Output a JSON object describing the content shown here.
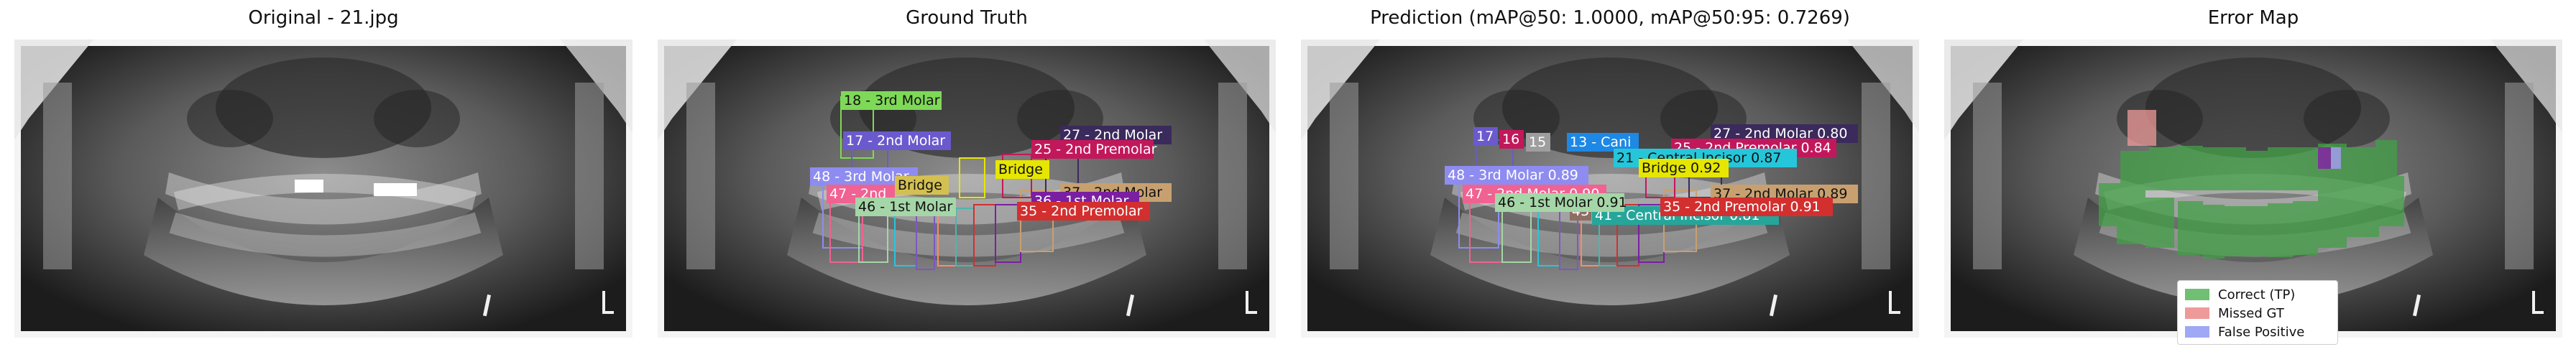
{
  "panels": [
    {
      "title": "Original - 21.jpg"
    },
    {
      "title": "Ground Truth"
    },
    {
      "title": "Prediction (mAP@50: 1.0000, mAP@50:95: 0.7269)"
    },
    {
      "title": "Error Map"
    }
  ],
  "ground_truth_labels": [
    {
      "text": "18 - 3rd Molar",
      "color": "#7ed957"
    },
    {
      "text": "17 - 2nd Molar",
      "color": "#6a5acd"
    },
    {
      "text": "27 - 2nd Molar",
      "color": "#3b2a5c"
    },
    {
      "text": "25 - 2nd Premolar",
      "color": "#c2185b"
    },
    {
      "text": "Bridge",
      "color": "#e6e600"
    },
    {
      "text": "48 - 3rd Molar",
      "color": "#8e8cf0"
    },
    {
      "text": "47 - 2nd",
      "color": "#f06292"
    },
    {
      "text": "Bridge",
      "color": "#d4c050"
    },
    {
      "text": "37 - 2nd Molar",
      "color": "#c8a070"
    },
    {
      "text": "36 - 1st Molar",
      "color": "#7b1fa2"
    },
    {
      "text": "35 - 2nd Premolar",
      "color": "#d32f2f"
    },
    {
      "text": "46 - 1st Molar",
      "color": "#a5d6a7"
    }
  ],
  "prediction_labels": [
    {
      "text": "27 - 2nd Molar 0.80",
      "color": "#3b2a5c"
    },
    {
      "text": "25 - 2nd Premolar 0.84",
      "color": "#c2185b"
    },
    {
      "text": "17",
      "color": "#6a5acd"
    },
    {
      "text": "16",
      "color": "#c2185b"
    },
    {
      "text": "15",
      "color": "#9e9e9e"
    },
    {
      "text": "13 - Cani",
      "color": "#1e88e5"
    },
    {
      "text": "21 - Central Incisor 0.87",
      "color": "#26c6da"
    },
    {
      "text": "Bridge 0.92",
      "color": "#e6e600"
    },
    {
      "text": "48 - 3rd Molar 0.89",
      "color": "#8e8cf0"
    },
    {
      "text": "47 - 2nd Molar 0.90",
      "color": "#f06292"
    },
    {
      "text": "37 - 2nd Molar 0.89",
      "color": "#c8a070"
    },
    {
      "text": "43",
      "color": "#8d6e63"
    },
    {
      "text": "41 - Central Incisor 0.81",
      "color": "#26a69a"
    },
    {
      "text": "35 - 2nd Premolar 0.91",
      "color": "#d32f2f"
    },
    {
      "text": "46 - 1st Molar 0.91",
      "color": "#a5d6a7"
    }
  ],
  "legend": {
    "items": [
      {
        "label": "Correct (TP)",
        "color": "#4caf50"
      },
      {
        "label": "Missed GT",
        "color": "#ef9a9a"
      },
      {
        "label": "False Positive",
        "color": "#9fa8f5"
      }
    ]
  }
}
